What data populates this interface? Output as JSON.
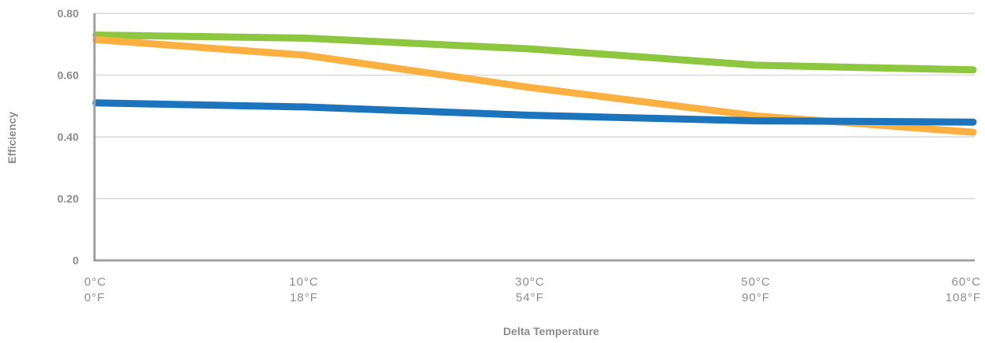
{
  "chart_data": {
    "type": "line",
    "xlabel": "Delta Temperature",
    "ylabel": "Efficiency",
    "ylim": [
      0,
      0.8
    ],
    "y_ticks": [
      "0",
      "0.20",
      "0.40",
      "0.60",
      "0.80"
    ],
    "y_tick_values": [
      0,
      0.2,
      0.4,
      0.6,
      0.8
    ],
    "x": [
      0,
      10,
      30,
      50,
      60
    ],
    "x_tick_labels": [
      {
        "c": "0°C",
        "f": "0°F"
      },
      {
        "c": "10°C",
        "f": "18°F"
      },
      {
        "c": "30°C",
        "f": "54°F"
      },
      {
        "c": "50°C",
        "f": "90°F"
      },
      {
        "c": "60°C",
        "f": "108°F"
      }
    ],
    "grid": true,
    "series": [
      {
        "color": "#8dc63f",
        "values": [
          0.73,
          0.72,
          0.685,
          0.632,
          0.617
        ]
      },
      {
        "color": "#fbb040",
        "values": [
          0.715,
          0.665,
          0.56,
          0.468,
          0.415
        ]
      },
      {
        "color": "#1c75bc",
        "values": [
          0.51,
          0.497,
          0.47,
          0.452,
          0.448
        ]
      }
    ]
  }
}
